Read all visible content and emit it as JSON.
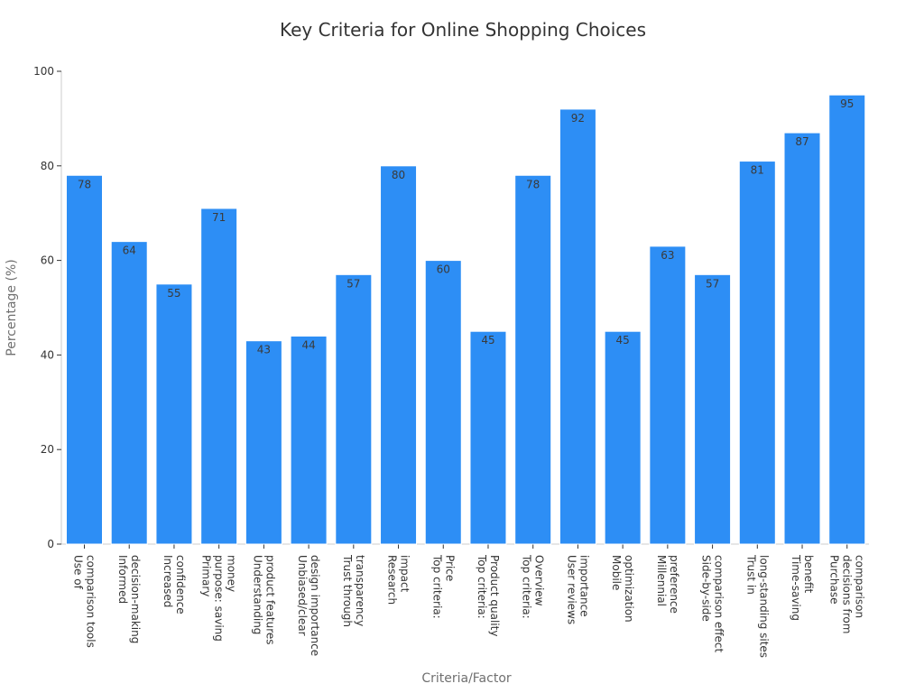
{
  "chart_data": {
    "type": "bar",
    "title": "Key Criteria for Online Shopping Choices",
    "xlabel": "Criteria/Factor",
    "ylabel": "Percentage (%)",
    "ylim": [
      0,
      100
    ],
    "yticks": [
      0,
      20,
      40,
      60,
      80,
      100
    ],
    "grid": false,
    "bar_color": "#2d8ef5",
    "categories": [
      [
        "Use of",
        "comparison tools"
      ],
      [
        "Informed",
        "decision-making"
      ],
      [
        "Increased",
        "confidence"
      ],
      [
        "Primary",
        "purpose: saving",
        "money"
      ],
      [
        "Understanding",
        "product features"
      ],
      [
        "Unbiased/clear",
        "design importance"
      ],
      [
        "Trust through",
        "transparency"
      ],
      [
        "Research",
        "impact"
      ],
      [
        "Top criteria:",
        "Price"
      ],
      [
        "Top criteria:",
        "Product quality"
      ],
      [
        "Top criteria:",
        "Overview"
      ],
      [
        "User reviews",
        "importance"
      ],
      [
        "Mobile",
        "optimization"
      ],
      [
        "Millennial",
        "preference"
      ],
      [
        "Side-by-side",
        "comparison effect"
      ],
      [
        "Trust in",
        "long-standing sites"
      ],
      [
        "Time-saving",
        "benefit"
      ],
      [
        "Purchase",
        "decisions from",
        "comparison"
      ]
    ],
    "values": [
      78,
      64,
      55,
      71,
      43,
      44,
      57,
      80,
      60,
      45,
      78,
      92,
      45,
      63,
      57,
      81,
      87,
      95
    ]
  }
}
